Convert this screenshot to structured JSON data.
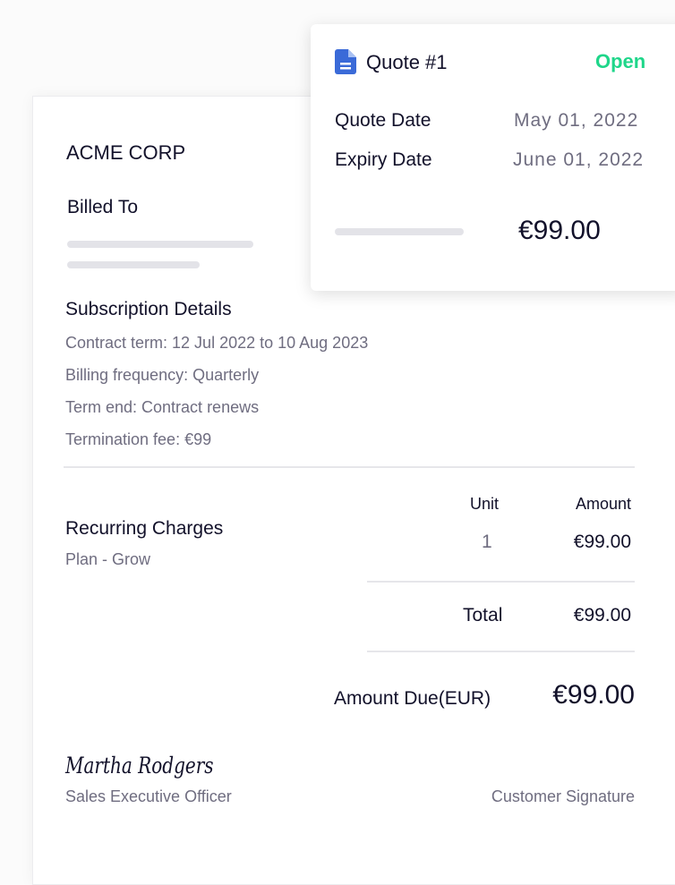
{
  "document": {
    "company": "ACME CORP",
    "billed_to": "Billed To",
    "subscription": {
      "title": "Subscription Details",
      "lines": [
        "Contract term: 12 Jul 2022 to 10 Aug 2023",
        "Billing frequency: Quarterly",
        "Term end: Contract renews",
        "Termination fee: €99"
      ]
    },
    "charges": {
      "col_unit": "Unit",
      "col_amount": "Amount",
      "title": "Recurring Charges",
      "plan": "Plan - Grow",
      "unit": "1",
      "amount": "€99.00",
      "total_label": "Total",
      "total": "€99.00",
      "due_label": "Amount Due",
      "due_currency": "(EUR)",
      "due": "€99.00"
    },
    "signature": {
      "name": "Martha Rodgers",
      "title": "Sales Executive Officer",
      "customer": "Customer Signature"
    }
  },
  "quote": {
    "icon": "document-icon",
    "title": "Quote #1",
    "status": "Open",
    "status_color": "#1fd68a",
    "quote_date_label": "Quote Date",
    "quote_date": "May 01, 2022",
    "expiry_label": "Expiry Date",
    "expiry": "June 01, 2022",
    "amount": "€99.00"
  }
}
